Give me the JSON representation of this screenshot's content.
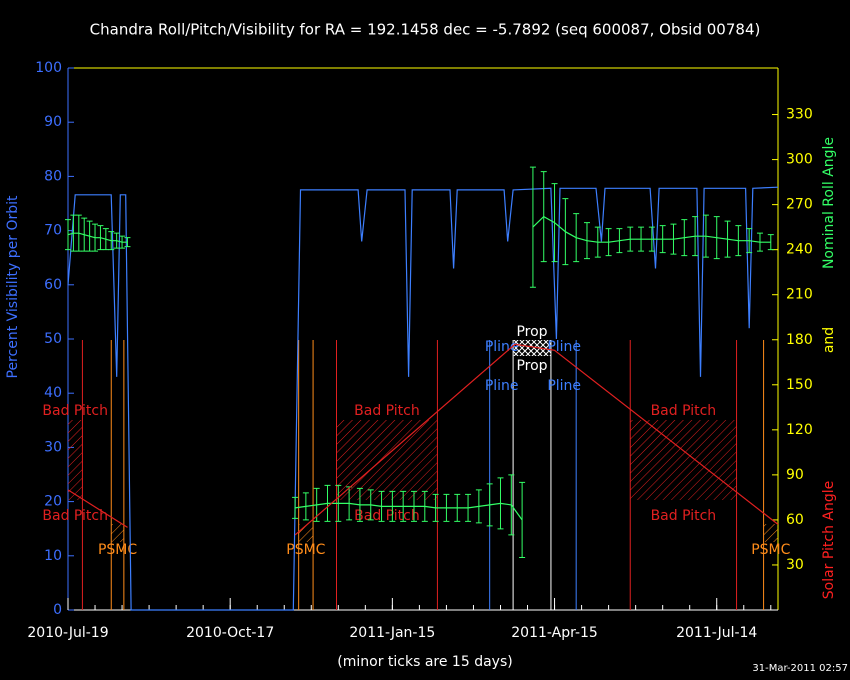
{
  "chart_data": {
    "type": "line",
    "title": "Chandra Roll/Pitch/Visibility for RA = 192.1458 dec = -5.7892 (seq 600087, Obsid 00784)",
    "xlabel": "(minor ticks are 15 days)",
    "ylabel": "Percent Visibility per Orbit",
    "y2label_parts": [
      {
        "text": "Solar Pitch Angle",
        "color": "#ff2020"
      },
      {
        "text": "and",
        "color": "#ffff00"
      },
      {
        "text": "Nominal Roll Angle",
        "color": "#33ff66"
      }
    ],
    "timestamp": "31-Mar-2011 02:57",
    "xlim": [
      0,
      394
    ],
    "xticks": [
      {
        "value": 0,
        "label": "2010-Jul-19"
      },
      {
        "value": 90,
        "label": "2010-Oct-17"
      },
      {
        "value": 180,
        "label": "2011-Jan-15"
      },
      {
        "value": 270,
        "label": "2011-Apr-15"
      },
      {
        "value": 360,
        "label": "2011-Jul-14"
      }
    ],
    "xminor": 15,
    "ylim": [
      0,
      100
    ],
    "yticks": [
      0,
      10,
      20,
      30,
      40,
      50,
      60,
      70,
      80,
      90,
      100
    ],
    "y2lim": [
      0,
      361
    ],
    "y2ticks": [
      30,
      60,
      90,
      120,
      150,
      180,
      210,
      240,
      270,
      300,
      330
    ],
    "ycolor": "#3d6fff",
    "y2color": "#ffff00",
    "series": [
      {
        "name": "Visibility",
        "color": "#3d7fff",
        "axis": "y",
        "x": [
          0,
          4,
          24,
          27,
          29,
          32,
          35,
          125,
          129,
          161,
          163,
          166,
          187,
          189,
          191,
          212,
          214,
          216,
          242,
          244,
          247,
          268,
          271,
          273,
          293,
          296,
          298,
          323,
          326,
          328,
          349,
          351,
          353,
          376,
          378,
          380,
          394
        ],
        "values": [
          60,
          76.6,
          76.6,
          43,
          76.6,
          76.6,
          0,
          0,
          77.5,
          77.5,
          68,
          77.5,
          77.5,
          43,
          77.5,
          77.5,
          63,
          77.5,
          77.5,
          68,
          77.5,
          77.8,
          50,
          77.8,
          77.8,
          68,
          77.8,
          77.8,
          63,
          77.8,
          77.8,
          43,
          77.8,
          77.8,
          52,
          77.8,
          78
        ]
      },
      {
        "name": "Nominal Roll Angle",
        "color": "#33ff66",
        "axis": "y2",
        "x": [
          0,
          3,
          6,
          9,
          12,
          15,
          18,
          21,
          24,
          27,
          30,
          33,
          80,
          126,
          132,
          138,
          144,
          150,
          156,
          162,
          168,
          174,
          180,
          186,
          192,
          198,
          204,
          210,
          216,
          222,
          228,
          234,
          240,
          246,
          252,
          255,
          258,
          264,
          270,
          276,
          282,
          288,
          294,
          300,
          306,
          312,
          318,
          324,
          330,
          336,
          342,
          348,
          354,
          360,
          366,
          372,
          378,
          384,
          390
        ],
        "values": [
          250,
          251,
          251,
          250,
          249,
          248,
          248,
          247,
          246,
          246,
          245,
          245,
          null,
          68,
          69,
          70,
          71,
          71,
          71,
          70,
          70,
          69,
          69,
          69,
          69,
          69,
          68,
          68,
          68,
          68,
          69,
          70,
          71,
          70,
          60,
          null,
          255,
          262,
          258,
          252,
          248,
          246,
          245,
          245,
          246,
          247,
          247,
          247,
          247,
          247,
          248,
          249,
          249,
          248,
          247,
          246,
          246,
          245,
          245
        ],
        "errors": [
          10,
          12,
          12,
          11,
          10,
          9,
          8,
          7,
          6,
          5,
          4,
          3,
          null,
          7,
          9,
          11,
          12,
          12,
          11,
          11,
          10,
          10,
          10,
          10,
          10,
          10,
          9,
          9,
          9,
          9,
          11,
          14,
          17,
          20,
          25,
          null,
          40,
          30,
          26,
          22,
          16,
          12,
          10,
          9,
          8,
          8,
          8,
          8,
          9,
          10,
          12,
          13,
          14,
          14,
          12,
          10,
          8,
          6,
          5
        ]
      },
      {
        "name": "Solar Pitch Angle",
        "color": "#e02020",
        "axis": "y2",
        "x": [
          0,
          33,
          80,
          126,
          248,
          270,
          394
        ],
        "values": [
          80,
          55,
          null,
          50,
          177,
          173,
          57
        ]
      }
    ],
    "bad_pitch": {
      "label": "Bad Pitch",
      "color": "#e02020",
      "spans": [
        [
          0,
          8
        ],
        [
          149,
          205
        ],
        [
          312,
          371
        ]
      ]
    },
    "psmc": {
      "label": "PSMC",
      "color": "#ff8c1a",
      "spans": [
        [
          24,
          31
        ],
        [
          128,
          136
        ],
        [
          386,
          394
        ]
      ]
    },
    "prop": {
      "label": "Prop",
      "color": "#ffffff",
      "spans": [
        [
          247,
          268
        ]
      ]
    },
    "pline": {
      "label": "Pline",
      "color": "#3d7fff",
      "spans": [
        [
          234,
          282
        ]
      ]
    }
  }
}
